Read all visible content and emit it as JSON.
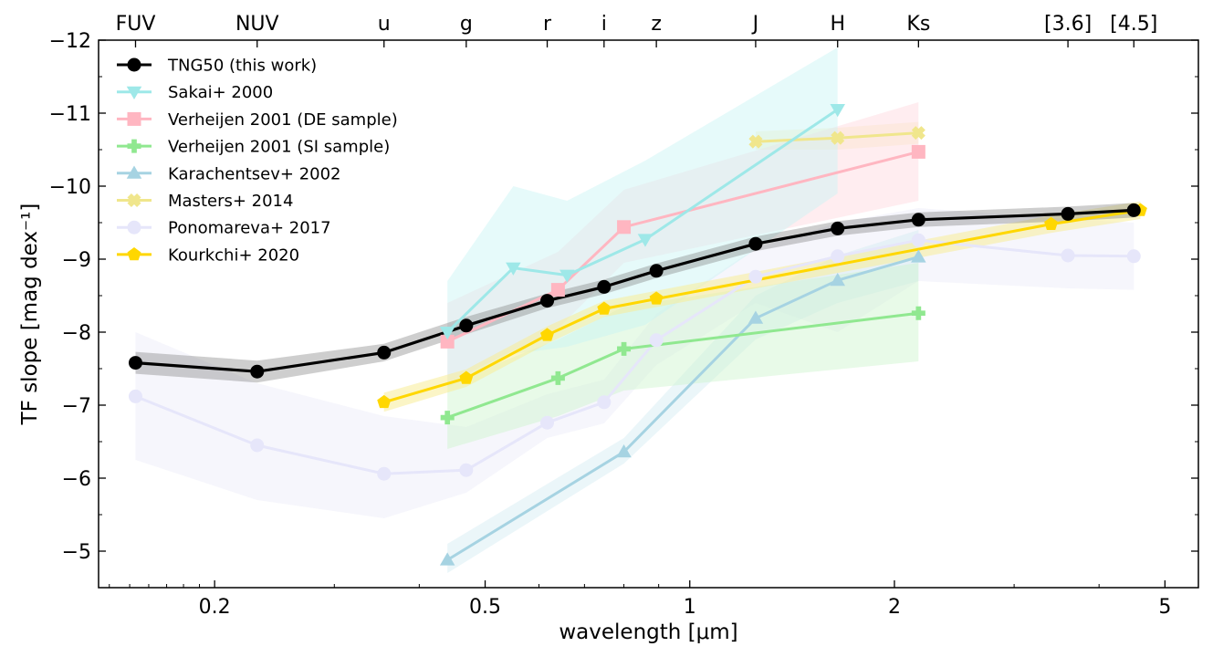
{
  "chart_data": {
    "type": "line",
    "xlabel": "wavelength [μm]",
    "ylabel": "TF slope [mag dex⁻¹]",
    "xscale": "log",
    "xlim": [
      0.135,
      5.6
    ],
    "ylim": [
      -4.5,
      -12
    ],
    "y_inverted": true,
    "xticks": [
      {
        "value": 0.2,
        "label": "0.2"
      },
      {
        "value": 0.5,
        "label": "0.5"
      },
      {
        "value": 1,
        "label": "1"
      },
      {
        "value": 2,
        "label": "2"
      },
      {
        "value": 5,
        "label": "5"
      }
    ],
    "yticks": [
      {
        "value": -5,
        "label": "−5"
      },
      {
        "value": -6,
        "label": "−6"
      },
      {
        "value": -7,
        "label": "−7"
      },
      {
        "value": -8,
        "label": "−8"
      },
      {
        "value": -9,
        "label": "−9"
      },
      {
        "value": -10,
        "label": "−10"
      },
      {
        "value": -11,
        "label": "−11"
      },
      {
        "value": -12,
        "label": "−12"
      }
    ],
    "top_bands": [
      {
        "label": "FUV",
        "value": 0.153
      },
      {
        "label": "NUV",
        "value": 0.231
      },
      {
        "label": "u",
        "value": 0.355
      },
      {
        "label": "g",
        "value": 0.469
      },
      {
        "label": "r",
        "value": 0.617
      },
      {
        "label": "i",
        "value": 0.748
      },
      {
        "label": "z",
        "value": 0.893
      },
      {
        "label": "J",
        "value": 1.25
      },
      {
        "label": "H",
        "value": 1.65
      },
      {
        "label": "Ks",
        "value": 2.17
      },
      {
        "label": "[3.6]",
        "value": 3.6
      },
      {
        "label": "[4.5]",
        "value": 4.5
      }
    ],
    "legend_position": "top-left",
    "grid": false,
    "series": [
      {
        "name": "TNG50 (this work)",
        "color": "#000000",
        "marker": "circle",
        "band_color": "#7f7f7f",
        "x": [
          0.153,
          0.231,
          0.355,
          0.469,
          0.617,
          0.748,
          0.893,
          1.25,
          1.65,
          2.17,
          3.6,
          4.5
        ],
        "y": [
          -7.58,
          -7.46,
          -7.72,
          -8.09,
          -8.43,
          -8.62,
          -8.84,
          -9.21,
          -9.42,
          -9.54,
          -9.62,
          -9.67
        ],
        "err": [
          0.15,
          0.15,
          0.12,
          0.12,
          0.1,
          0.1,
          0.1,
          0.1,
          0.1,
          0.1,
          0.1,
          0.1
        ]
      },
      {
        "name": "Sakai+ 2000",
        "color": "#9ee8e8",
        "marker": "triangle-down",
        "band_color": "#c8f5f5",
        "x": [
          0.44,
          0.55,
          0.66,
          0.86,
          1.65
        ],
        "y": [
          -8.0,
          -8.88,
          -8.78,
          -9.27,
          -11.05
        ],
        "band": [
          [
            -7.25,
            -8.7
          ],
          [
            -7.7,
            -10.0
          ],
          [
            -7.8,
            -9.8
          ],
          [
            -8.1,
            -10.35
          ],
          [
            -9.9,
            -11.9
          ]
        ]
      },
      {
        "name": "Verheijen 2001 (DE sample)",
        "color": "#ffb6c1",
        "marker": "square",
        "band_color": "#ffd8de",
        "x": [
          0.44,
          0.64,
          0.8,
          2.17
        ],
        "y": [
          -7.87,
          -8.58,
          -9.44,
          -10.47
        ],
        "band": [
          [
            -7.3,
            -8.4
          ],
          [
            -8.05,
            -9.1
          ],
          [
            -8.95,
            -9.95
          ],
          [
            -9.8,
            -11.15
          ]
        ]
      },
      {
        "name": "Verheijen 2001 (SI sample)",
        "color": "#90e890",
        "marker": "plus",
        "band_color": "#ccf5cc",
        "x": [
          0.44,
          0.64,
          0.8,
          2.17
        ],
        "y": [
          -6.83,
          -7.37,
          -7.77,
          -8.26
        ],
        "band": [
          [
            -6.4,
            -7.3
          ],
          [
            -6.85,
            -7.9
          ],
          [
            -7.2,
            -8.35
          ],
          [
            -7.6,
            -8.95
          ]
        ]
      },
      {
        "name": "Karachentsev+ 2002",
        "color": "#a6d3e2",
        "marker": "triangle-up",
        "band_color": "#d2eaf2",
        "x": [
          0.44,
          0.8,
          1.25,
          1.65,
          2.17
        ],
        "y": [
          -4.88,
          -6.36,
          -8.19,
          -8.71,
          -9.03
        ],
        "band": [
          [
            -4.7,
            -5.1
          ],
          [
            -6.2,
            -6.55
          ],
          [
            -7.9,
            -8.5
          ],
          [
            -8.4,
            -9.05
          ],
          [
            -8.7,
            -9.4
          ]
        ]
      },
      {
        "name": "Masters+ 2014",
        "color": "#f0e68c",
        "marker": "x-filled",
        "band_color": "#f7f0bf",
        "x": [
          1.25,
          1.65,
          2.17
        ],
        "y": [
          -10.61,
          -10.66,
          -10.73
        ],
        "band": [
          [
            -10.5,
            -10.75
          ],
          [
            -10.5,
            -10.8
          ],
          [
            -10.58,
            -10.88
          ]
        ]
      },
      {
        "name": "Ponomareva+ 2017",
        "color": "#e6e6fa",
        "marker": "circle",
        "band_color": "#ebebf8",
        "x": [
          0.153,
          0.231,
          0.355,
          0.469,
          0.617,
          0.748,
          0.893,
          1.25,
          1.65,
          2.17,
          3.6,
          4.5
        ],
        "y": [
          -7.12,
          -6.45,
          -6.06,
          -6.11,
          -6.76,
          -7.04,
          -7.89,
          -8.76,
          -9.04,
          -9.26,
          -9.05,
          -9.04
        ],
        "band": [
          [
            -6.25,
            -8.0
          ],
          [
            -5.7,
            -7.3
          ],
          [
            -5.45,
            -6.85
          ],
          [
            -5.8,
            -6.7
          ],
          [
            -6.55,
            -7.15
          ],
          [
            -6.75,
            -7.35
          ],
          [
            -7.55,
            -8.25
          ],
          [
            -8.4,
            -9.15
          ],
          [
            -8.0,
            -9.5
          ],
          [
            -8.7,
            -9.7
          ],
          [
            -8.6,
            -9.55
          ],
          [
            -8.58,
            -9.5
          ]
        ]
      },
      {
        "name": "Kourkchi+ 2020",
        "color": "#ffd700",
        "marker": "pentagon",
        "band_color": "#f8ec98",
        "x": [
          0.355,
          0.469,
          0.617,
          0.748,
          3.4,
          4.6
        ],
        "y": [
          -7.04,
          -7.37,
          -7.96,
          -8.32,
          -9.48,
          -9.67
        ],
        "err": [
          0.13,
          0.12,
          0.12,
          0.11,
          0.12,
          0.12
        ],
        "extra_nodes": [
          [
            0.893,
            -8.46
          ]
        ]
      }
    ]
  }
}
